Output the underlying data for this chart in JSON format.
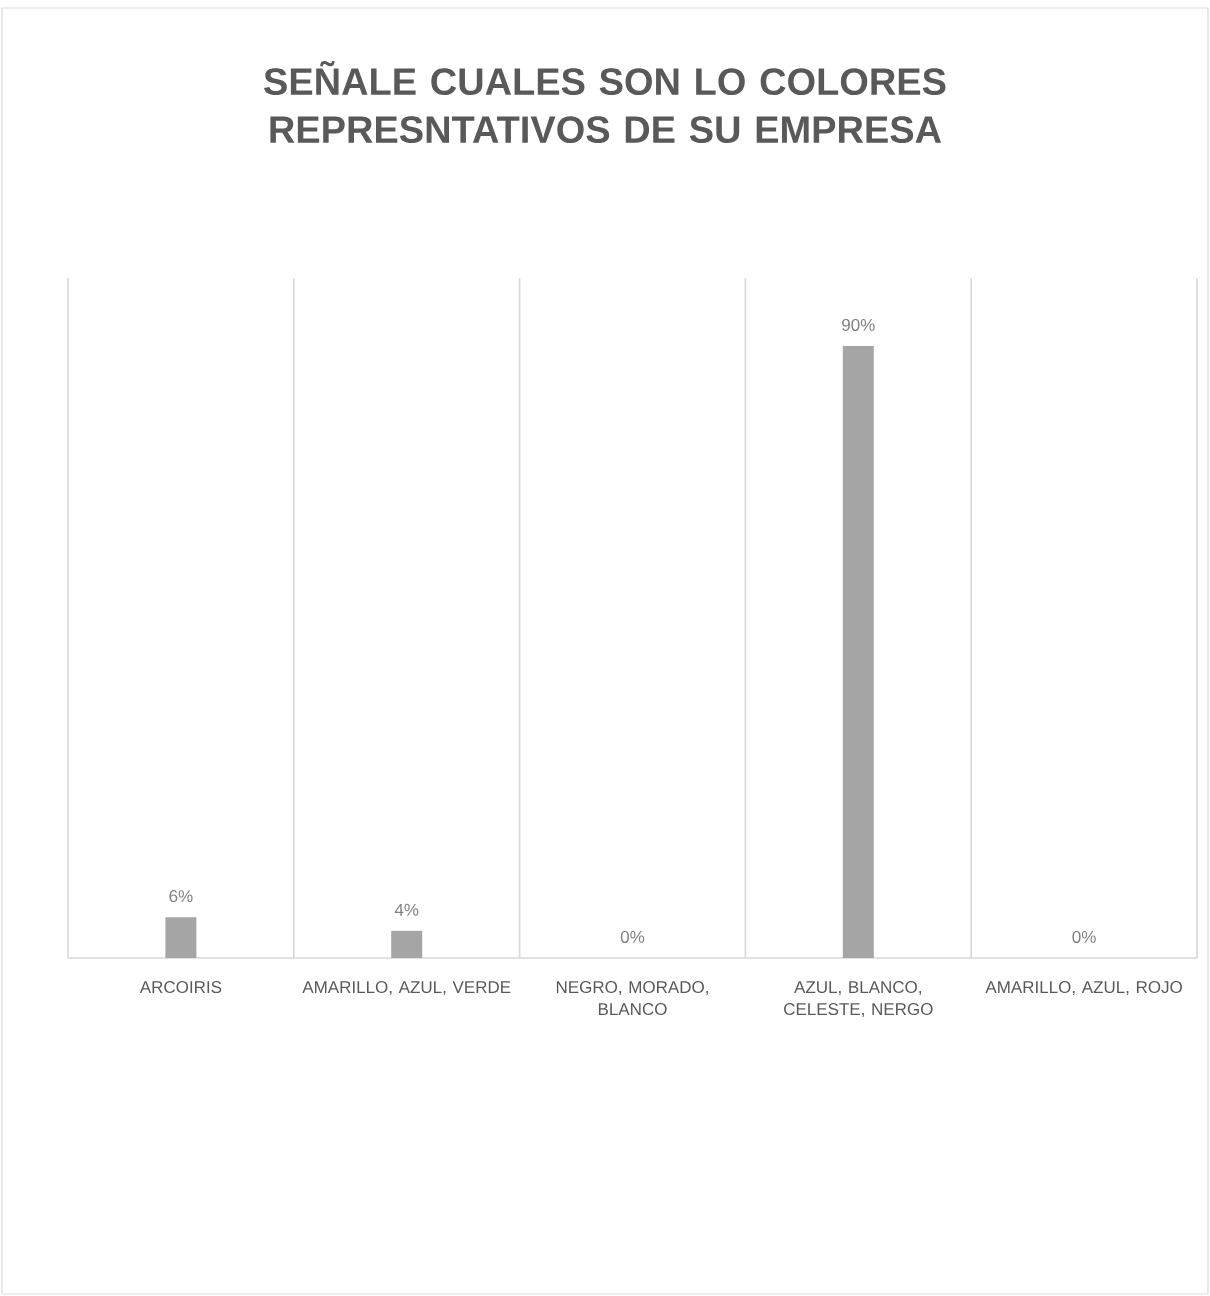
{
  "chart_data": {
    "type": "bar",
    "title": "SEÑALE CUALES SON LO COLORES REPRESNTATIVOS DE SU EMPRESA",
    "categories": [
      "ARCOIRIS",
      "AMARILLO, AZUL, VERDE",
      "NEGRO, MORADO, BLANCO",
      "AZUL, BLANCO, CELESTE, NERGO",
      "AMARILLO, AZUL, ROJO"
    ],
    "values": [
      6,
      4,
      0,
      90,
      0
    ],
    "value_labels": [
      "6%",
      "4%",
      "0%",
      "90%",
      "0%"
    ],
    "color": "#a5a5a5",
    "ylim": [
      0,
      100
    ],
    "grid": "x"
  }
}
